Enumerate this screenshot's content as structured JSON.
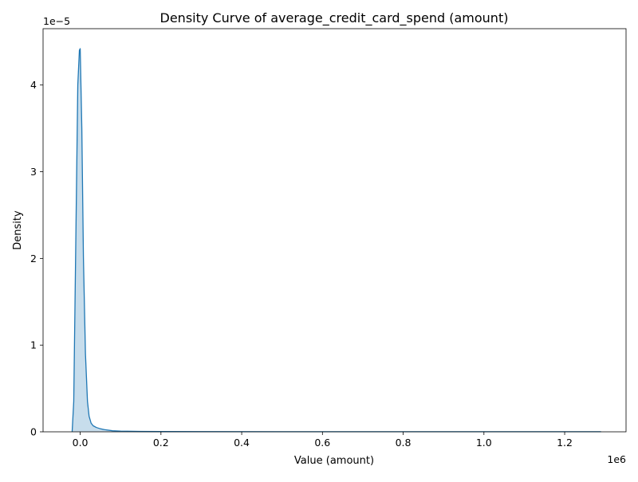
{
  "chart_data": {
    "type": "area",
    "title": "Density Curve of average_credit_card_spend (amount)",
    "xlabel": "Value (amount)",
    "ylabel": "Density",
    "x_offset_text": "1e6",
    "y_offset_text": "1e−5",
    "xlim": [
      -0.092,
      1.352
    ],
    "ylim": [
      0,
      4.65
    ],
    "x_ticks": [
      0.0,
      0.2,
      0.4,
      0.6,
      0.8,
      1.0,
      1.2
    ],
    "x_tick_labels": [
      "0.0",
      "0.2",
      "0.4",
      "0.6",
      "0.8",
      "1.0",
      "1.2"
    ],
    "y_ticks": [
      0,
      1,
      2,
      3,
      4
    ],
    "y_tick_labels": [
      "0",
      "1",
      "2",
      "3",
      "4"
    ],
    "grid": false,
    "line_color": "#1f77b4",
    "fill_opacity": 0.25,
    "series": [
      {
        "x": [
          -0.02,
          -0.016,
          -0.012,
          -0.006,
          -0.002,
          0.0,
          0.004,
          0.008,
          0.013,
          0.018,
          0.022,
          0.027,
          0.032,
          0.04,
          0.05,
          0.06,
          0.08,
          0.1,
          0.15,
          0.2,
          0.3,
          0.5,
          0.8,
          1.0,
          1.29
        ],
        "y": [
          0.0,
          0.35,
          1.8,
          4.0,
          4.4,
          4.42,
          3.5,
          2.0,
          0.9,
          0.35,
          0.18,
          0.1,
          0.07,
          0.05,
          0.035,
          0.025,
          0.012,
          0.008,
          0.004,
          0.003,
          0.002,
          0.001,
          0.001,
          0.001,
          0.001
        ]
      }
    ]
  }
}
